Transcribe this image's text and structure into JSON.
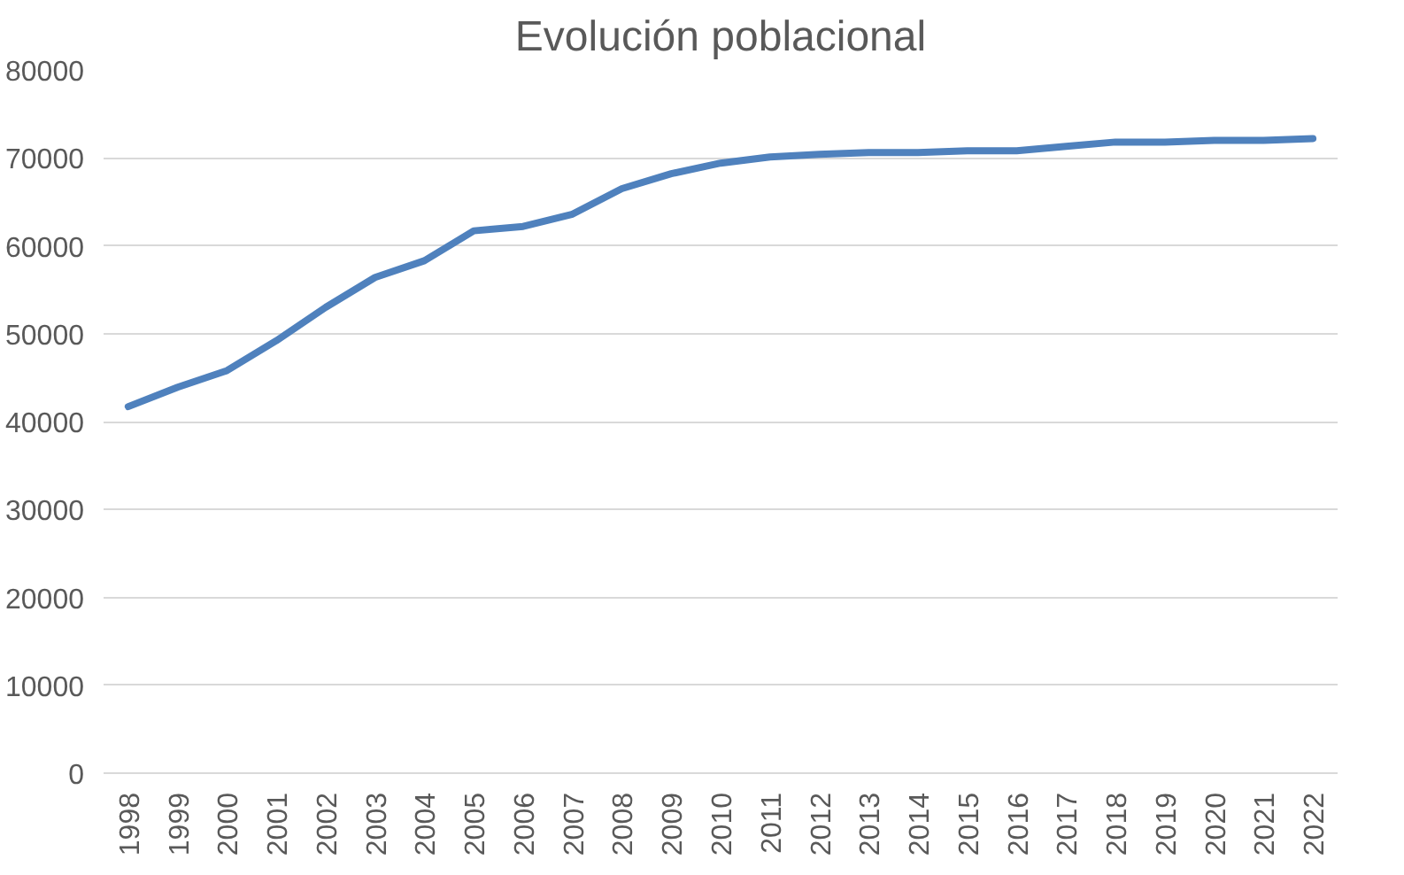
{
  "chart_data": {
    "type": "line",
    "title": "Evolución poblacional",
    "categories": [
      "1998",
      "1999",
      "2000",
      "2001",
      "2002",
      "2003",
      "2004",
      "2005",
      "2006",
      "2007",
      "2008",
      "2009",
      "2010",
      "2011",
      "2012",
      "2013",
      "2014",
      "2015",
      "2016",
      "2017",
      "2018",
      "2019",
      "2020",
      "2021",
      "2022"
    ],
    "series": [
      {
        "color": "#4f81bd",
        "values": [
          41700,
          43900,
          45800,
          49200,
          53000,
          56400,
          58300,
          61700,
          62200,
          63600,
          66500,
          68200,
          69400,
          70100,
          70400,
          70600,
          70600,
          70800,
          70800,
          71300,
          71800,
          71800,
          72000,
          72000,
          72200
        ]
      }
    ],
    "ylim": [
      0,
      80000
    ],
    "yticks": [
      0,
      10000,
      20000,
      30000,
      40000,
      50000,
      60000,
      70000,
      80000
    ],
    "grid": "y"
  }
}
